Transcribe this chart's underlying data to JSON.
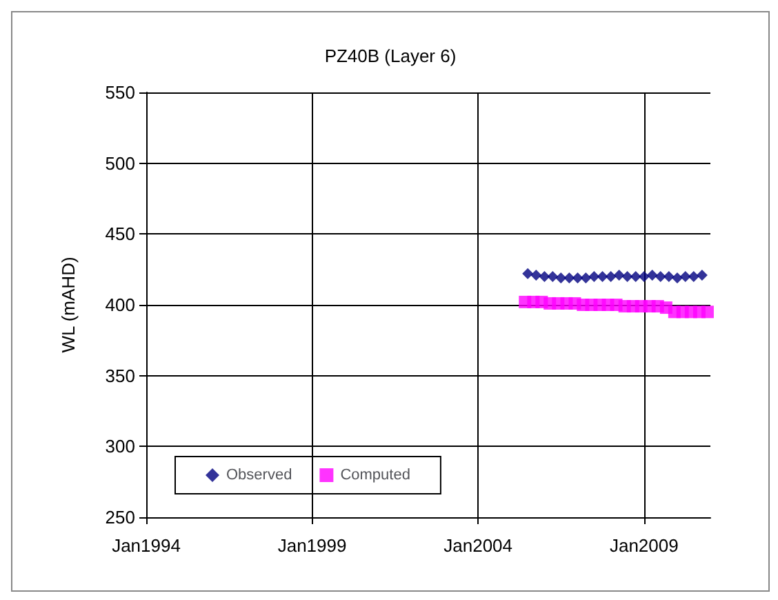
{
  "chart_data": {
    "type": "scatter",
    "title": "PZ40B (Layer 6)",
    "ylabel": "WL (mAHD)",
    "xlim": [
      "1994-01-01",
      "2011-01-01"
    ],
    "xticks": [
      {
        "value": "1994-01-01",
        "label": "Jan1994"
      },
      {
        "value": "1999-01-01",
        "label": "Jan1999"
      },
      {
        "value": "2004-01-01",
        "label": "Jan2004"
      },
      {
        "value": "2009-01-01",
        "label": "Jan2009"
      }
    ],
    "ylim": [
      250,
      550
    ],
    "yticks": [
      250,
      300,
      350,
      400,
      450,
      500,
      550
    ],
    "grid": true,
    "legend": "bottom left",
    "series": [
      {
        "name": "Observed",
        "color": "#000080",
        "marker": "diamond",
        "x": [
          "2005-07",
          "2005-10",
          "2006-01",
          "2006-04",
          "2006-07",
          "2006-10",
          "2007-01",
          "2007-04",
          "2007-07",
          "2007-10",
          "2008-01",
          "2008-04",
          "2008-07",
          "2008-10",
          "2009-01",
          "2009-04",
          "2009-07",
          "2009-10",
          "2010-01",
          "2010-04",
          "2010-07",
          "2010-10"
        ],
        "values": [
          422,
          421,
          420,
          420,
          419,
          419,
          419,
          419,
          420,
          420,
          420,
          421,
          420,
          420,
          420,
          421,
          420,
          420,
          419,
          420,
          420,
          421
        ]
      },
      {
        "name": "Computed",
        "color": "#ff00ff",
        "marker": "square",
        "x": [
          "2005-06",
          "2005-09",
          "2005-12",
          "2006-03",
          "2006-06",
          "2006-09",
          "2006-12",
          "2007-03",
          "2007-06",
          "2007-09",
          "2007-12",
          "2008-03",
          "2008-06",
          "2008-09",
          "2008-12",
          "2009-03",
          "2009-06",
          "2009-09",
          "2009-12",
          "2010-03",
          "2010-06",
          "2010-09",
          "2010-12"
        ],
        "values": [
          402,
          402,
          402,
          401,
          401,
          401,
          401,
          400,
          400,
          400,
          400,
          400,
          399,
          399,
          399,
          399,
          399,
          398,
          395,
          395,
          395,
          395,
          395
        ]
      }
    ]
  }
}
